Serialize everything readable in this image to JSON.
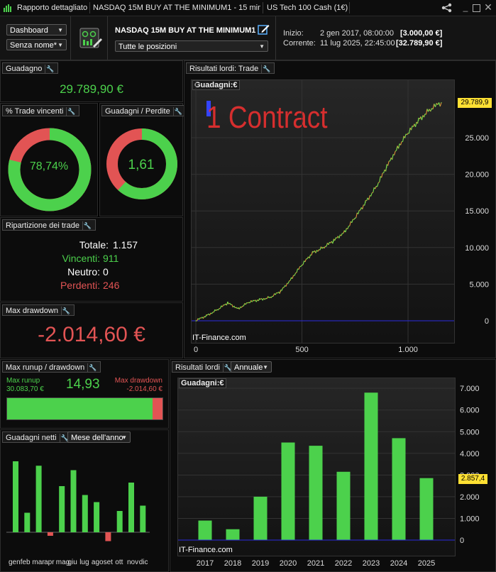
{
  "titlebar": {
    "title": "Rapporto dettagliato",
    "tab1": "NASDAQ 15M BUY AT THE MINIMUM1 - 15 minuti",
    "tab2": "US Tech 100 Cash (1€)"
  },
  "header": {
    "view_select": "Dashboard",
    "name_select": "Senza nome*",
    "strategy_name": "NASDAQ 15M BUY AT THE MINIMUM1",
    "positions_select": "Tutte le posizioni",
    "start_label": "Inizio:",
    "start_date": "2 gen 2017, 08:00:00",
    "start_value": "[3.000,00 €]",
    "current_label": "Corrente:",
    "current_date": "11 lug 2025, 22:45:00",
    "current_value": "[32.789,90 €]"
  },
  "gain": {
    "tab": "Guadagno",
    "value": "29.789,90 €"
  },
  "win_pct": {
    "tab": "% Trade vincenti",
    "value": "78,74%",
    "fraction": 0.7874
  },
  "gain_loss": {
    "tab": "Guadagni / Perdite",
    "value": "1,61",
    "fraction": 0.617
  },
  "breakdown": {
    "tab": "Ripartizione dei trade",
    "total_label": "Totale:",
    "total": "1.157",
    "win_label": "Vincenti:",
    "win": "911",
    "neutral_label": "Neutro:",
    "neutral": "0",
    "loss_label": "Perdenti:",
    "loss": "246"
  },
  "drawdown": {
    "tab": "Max drawdown",
    "value": "-2.014,60 €"
  },
  "runup": {
    "tab": "Max runup / drawdown",
    "runup_label": "Max runup",
    "runup_value": "30.083,70 €",
    "ratio": "14,93",
    "dd_label": "Max drawdown",
    "dd_value": "-2.014,60 €",
    "runup_fraction": 0.937
  },
  "net_gains": {
    "tab": "Guadagni netti",
    "period_select": "Mese dell'anno",
    "months": [
      "gen",
      "feb",
      "mar",
      "apr",
      "mag",
      "giu",
      "lug",
      "ago",
      "set",
      "ott",
      "nov",
      "dic"
    ]
  },
  "gross_trade": {
    "tab": "Risultati lordi: Trade",
    "inner_label": "Guadagni:",
    "unit": "€",
    "overlay_text": "1 Contract",
    "watermark": "IT-Finance.com",
    "current_label": "29.789,9"
  },
  "gross_year": {
    "tab": "Risultati lordi",
    "period_select": "Annuale",
    "inner_label": "Guadagni:",
    "unit": "€",
    "watermark": "IT-Finance.com",
    "current_label": "2.857,4"
  },
  "colors": {
    "green": "#4cd14c",
    "red": "#e25454",
    "blue": "#2a2adf",
    "line_green": "#7ddc4a",
    "line_orange": "#e0903a",
    "label_yellow": "#ffe033"
  },
  "chart_data": [
    {
      "type": "line",
      "title": "Risultati lordi: Trade",
      "ylabel": "Guadagni: €",
      "xlim": [
        0,
        1157
      ],
      "ylim": [
        -300,
        30500
      ],
      "x_ticks": [
        "0",
        "500",
        "1.000"
      ],
      "y_ticks": [
        "0",
        "5.000",
        "10.000",
        "15.000",
        "20.000",
        "25.000"
      ],
      "x": [
        0,
        50,
        100,
        150,
        200,
        250,
        300,
        350,
        400,
        450,
        500,
        550,
        600,
        650,
        700,
        750,
        800,
        850,
        900,
        950,
        1000,
        1050,
        1100,
        1157
      ],
      "y": [
        0,
        700,
        1500,
        2400,
        1700,
        2500,
        2900,
        3200,
        4000,
        5800,
        7600,
        9300,
        10000,
        10900,
        12200,
        14000,
        16200,
        18300,
        21000,
        23700,
        25600,
        27400,
        28800,
        29790
      ]
    },
    {
      "type": "bar",
      "title": "Risultati lordi",
      "ylabel": "Guadagni: €",
      "categories": [
        "2017",
        "2018",
        "2019",
        "2020",
        "2021",
        "2022",
        "2023",
        "2024",
        "2025"
      ],
      "values": [
        900,
        500,
        2000,
        4500,
        4350,
        3150,
        6800,
        4700,
        2857.4
      ],
      "ylim": [
        0,
        7300
      ],
      "y_ticks": [
        "0",
        "1.000",
        "2.000",
        "3.000",
        "4.000",
        "5.000",
        "6.000",
        "7.000"
      ]
    },
    {
      "type": "bar",
      "title": "Guadagni netti",
      "categories": [
        "gen",
        "feb",
        "mar",
        "apr",
        "mag",
        "giu",
        "lug",
        "ago",
        "set",
        "ott",
        "nov",
        "dic"
      ],
      "values": [
        4000,
        1100,
        3750,
        -200,
        2600,
        3500,
        2100,
        1700,
        -500,
        1200,
        2800,
        1500
      ]
    }
  ]
}
